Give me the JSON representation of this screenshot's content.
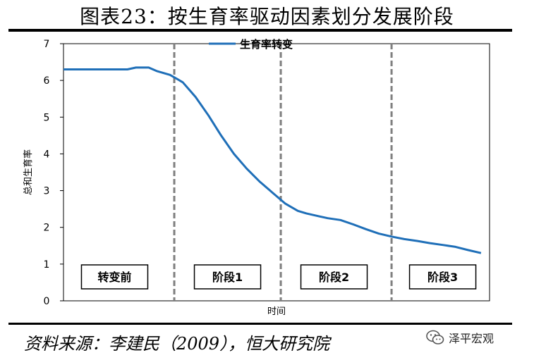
{
  "header": {
    "title": "图表23：按生育率驱动因素划分发展阶段"
  },
  "footer": {
    "source": "资料来源：李建民（2009），恒大研究院",
    "watermark": "泽平宏观"
  },
  "icons": {
    "watermark_icon": "wechat-icon"
  },
  "chart_data": {
    "type": "line",
    "xlabel": "时间",
    "ylabel": "总和生育率",
    "ylim": [
      0,
      7
    ],
    "xlim": [
      0,
      100
    ],
    "y_ticks": [
      "0",
      "1",
      "2",
      "3",
      "4",
      "5",
      "6",
      "7"
    ],
    "grid": false,
    "legend_position": "top-center",
    "series": [
      {
        "name": "生育率转变",
        "color": "#1f6fb8",
        "x": [
          0,
          5,
          10,
          15,
          17,
          20,
          22,
          25,
          28,
          31,
          34,
          37,
          40,
          43,
          46,
          49,
          52,
          55,
          57,
          60,
          62,
          65,
          68,
          71,
          74,
          77,
          80,
          83,
          86,
          89,
          92,
          95,
          98
        ],
        "y": [
          6.3,
          6.3,
          6.3,
          6.3,
          6.35,
          6.35,
          6.25,
          6.15,
          5.95,
          5.55,
          5.05,
          4.5,
          4.0,
          3.6,
          3.25,
          2.95,
          2.65,
          2.45,
          2.38,
          2.3,
          2.25,
          2.2,
          2.08,
          1.95,
          1.83,
          1.75,
          1.68,
          1.63,
          1.57,
          1.52,
          1.47,
          1.38,
          1.3
        ]
      }
    ],
    "stage_dividers_x": [
      26,
      51,
      77
    ],
    "stages": [
      {
        "label": "转变前",
        "x_center": 12
      },
      {
        "label": "阶段1",
        "x_center": 38.5
      },
      {
        "label": "阶段2",
        "x_center": 63.5
      },
      {
        "label": "阶段3",
        "x_center": 89
      }
    ]
  }
}
